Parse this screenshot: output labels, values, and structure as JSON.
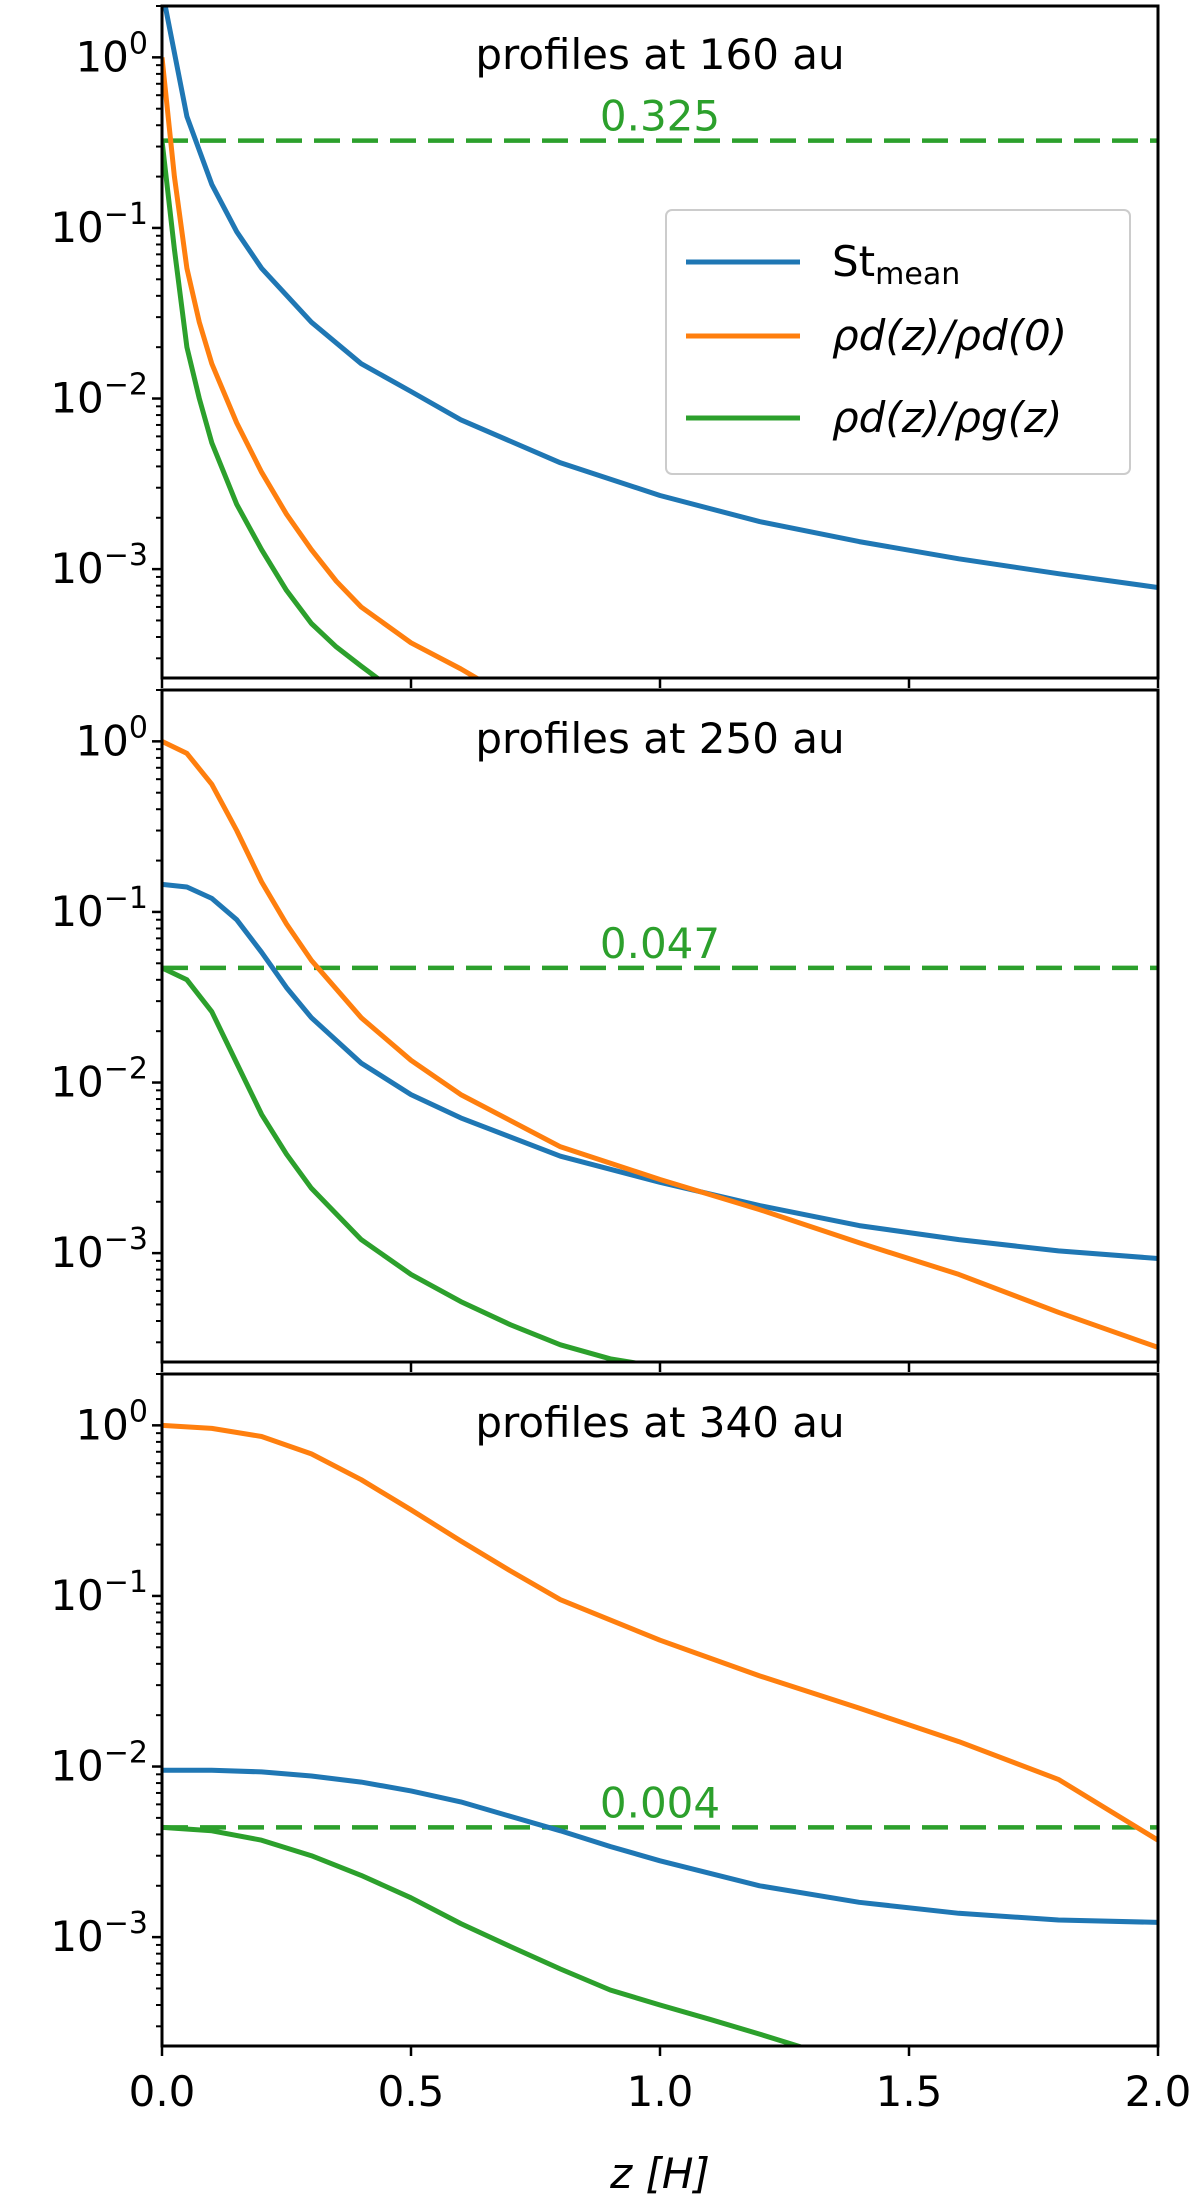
{
  "chart_data": [
    {
      "type": "line",
      "title": "profiles at 160 au",
      "annotation": "0.325",
      "threshold": 0.325,
      "xlim": [
        0,
        2
      ],
      "ylim": [
        0.00023,
        2.0
      ],
      "yscale": "log",
      "xticks": [
        "0.0",
        "0.5",
        "1.0",
        "1.5",
        "2.0"
      ],
      "legend": {
        "placement": "upper right",
        "entries": [
          {
            "series": "St_mean",
            "base": "St",
            "sub": "mean"
          },
          {
            "series": "rho_d_norm",
            "label": "ρd(z)/ρd(0)"
          },
          {
            "series": "rho_ratio",
            "label": "ρd(z)/ρg(z)"
          }
        ]
      },
      "series": [
        {
          "name": "St_mean",
          "color": "#1f77b4",
          "points": [
            [
              0.0,
              2.5
            ],
            [
              0.05,
              0.45
            ],
            [
              0.1,
              0.18
            ],
            [
              0.15,
              0.095
            ],
            [
              0.2,
              0.058
            ],
            [
              0.3,
              0.028
            ],
            [
              0.4,
              0.016
            ],
            [
              0.5,
              0.011
            ],
            [
              0.6,
              0.0075
            ],
            [
              0.8,
              0.0042
            ],
            [
              1.0,
              0.0027
            ],
            [
              1.2,
              0.0019
            ],
            [
              1.4,
              0.00145
            ],
            [
              1.6,
              0.00115
            ],
            [
              1.8,
              0.00094
            ],
            [
              2.0,
              0.00078
            ]
          ]
        },
        {
          "name": "rho_d_norm",
          "color": "#ff7f0e",
          "points": [
            [
              0.0,
              1.0
            ],
            [
              0.025,
              0.2
            ],
            [
              0.05,
              0.058
            ],
            [
              0.075,
              0.028
            ],
            [
              0.1,
              0.016
            ],
            [
              0.15,
              0.0072
            ],
            [
              0.2,
              0.0037
            ],
            [
              0.25,
              0.0021
            ],
            [
              0.3,
              0.0013
            ],
            [
              0.35,
              0.00085
            ],
            [
              0.4,
              0.0006
            ],
            [
              0.5,
              0.00037
            ],
            [
              0.6,
              0.00026
            ],
            [
              0.68,
              0.00019
            ]
          ]
        },
        {
          "name": "rho_ratio",
          "color": "#2ca02c",
          "points": [
            [
              0.0,
              0.325
            ],
            [
              0.025,
              0.075
            ],
            [
              0.05,
              0.02
            ],
            [
              0.075,
              0.01
            ],
            [
              0.1,
              0.0055
            ],
            [
              0.15,
              0.0024
            ],
            [
              0.2,
              0.0013
            ],
            [
              0.25,
              0.00075
            ],
            [
              0.3,
              0.00048
            ],
            [
              0.35,
              0.00035
            ],
            [
              0.4,
              0.00027
            ],
            [
              0.45,
              0.00021
            ]
          ]
        }
      ]
    },
    {
      "type": "line",
      "title": "profiles at 250 au",
      "annotation": "0.047",
      "threshold": 0.047,
      "xlim": [
        0,
        2
      ],
      "ylim": [
        0.00023,
        2.0
      ],
      "yscale": "log",
      "xticks": [
        "0.0",
        "0.5",
        "1.0",
        "1.5",
        "2.0"
      ],
      "series": [
        {
          "name": "St_mean",
          "color": "#1f77b4",
          "points": [
            [
              0.0,
              0.145
            ],
            [
              0.05,
              0.14
            ],
            [
              0.1,
              0.12
            ],
            [
              0.15,
              0.09
            ],
            [
              0.2,
              0.058
            ],
            [
              0.25,
              0.036
            ],
            [
              0.3,
              0.024
            ],
            [
              0.4,
              0.013
            ],
            [
              0.5,
              0.0085
            ],
            [
              0.6,
              0.0062
            ],
            [
              0.8,
              0.0037
            ],
            [
              1.0,
              0.0026
            ],
            [
              1.2,
              0.0019
            ],
            [
              1.4,
              0.00145
            ],
            [
              1.6,
              0.0012
            ],
            [
              1.8,
              0.00103
            ],
            [
              2.0,
              0.00093
            ]
          ]
        },
        {
          "name": "rho_d_norm",
          "color": "#ff7f0e",
          "points": [
            [
              0.0,
              1.0
            ],
            [
              0.05,
              0.85
            ],
            [
              0.1,
              0.56
            ],
            [
              0.15,
              0.3
            ],
            [
              0.2,
              0.15
            ],
            [
              0.25,
              0.085
            ],
            [
              0.3,
              0.052
            ],
            [
              0.4,
              0.024
            ],
            [
              0.5,
              0.0135
            ],
            [
              0.6,
              0.0085
            ],
            [
              0.8,
              0.0042
            ],
            [
              1.0,
              0.0027
            ],
            [
              1.2,
              0.0018
            ],
            [
              1.4,
              0.00115
            ],
            [
              1.6,
              0.00075
            ],
            [
              1.8,
              0.00045
            ],
            [
              2.0,
              0.00028
            ]
          ]
        },
        {
          "name": "rho_ratio",
          "color": "#2ca02c",
          "points": [
            [
              0.0,
              0.047
            ],
            [
              0.05,
              0.04
            ],
            [
              0.1,
              0.026
            ],
            [
              0.15,
              0.013
            ],
            [
              0.2,
              0.0065
            ],
            [
              0.25,
              0.0038
            ],
            [
              0.3,
              0.0024
            ],
            [
              0.4,
              0.0012
            ],
            [
              0.5,
              0.00075
            ],
            [
              0.6,
              0.00052
            ],
            [
              0.7,
              0.00038
            ],
            [
              0.8,
              0.00029
            ],
            [
              0.9,
              0.00024
            ],
            [
              1.02,
              0.00021
            ]
          ]
        }
      ]
    },
    {
      "type": "line",
      "title": "profiles at 340 au",
      "annotation": "0.004",
      "threshold": 0.0044,
      "xlim": [
        0,
        2
      ],
      "ylim": [
        0.00023,
        2.0
      ],
      "yscale": "log",
      "xticks": [
        "0.0",
        "0.5",
        "1.0",
        "1.5",
        "2.0"
      ],
      "xlabel": "z [H]",
      "series": [
        {
          "name": "St_mean",
          "color": "#1f77b4",
          "points": [
            [
              0.0,
              0.0095
            ],
            [
              0.1,
              0.0095
            ],
            [
              0.2,
              0.0093
            ],
            [
              0.3,
              0.0088
            ],
            [
              0.4,
              0.0081
            ],
            [
              0.5,
              0.0072
            ],
            [
              0.6,
              0.0062
            ],
            [
              0.7,
              0.0051
            ],
            [
              0.8,
              0.0042
            ],
            [
              0.9,
              0.0034
            ],
            [
              1.0,
              0.0028
            ],
            [
              1.2,
              0.002
            ],
            [
              1.4,
              0.0016
            ],
            [
              1.6,
              0.00138
            ],
            [
              1.8,
              0.00126
            ],
            [
              2.0,
              0.00122
            ]
          ]
        },
        {
          "name": "rho_d_norm",
          "color": "#ff7f0e",
          "points": [
            [
              0.0,
              1.0
            ],
            [
              0.1,
              0.96
            ],
            [
              0.2,
              0.86
            ],
            [
              0.3,
              0.68
            ],
            [
              0.4,
              0.48
            ],
            [
              0.5,
              0.32
            ],
            [
              0.6,
              0.21
            ],
            [
              0.7,
              0.14
            ],
            [
              0.8,
              0.095
            ],
            [
              1.0,
              0.055
            ],
            [
              1.2,
              0.034
            ],
            [
              1.4,
              0.022
            ],
            [
              1.6,
              0.014
            ],
            [
              1.8,
              0.0084
            ],
            [
              2.0,
              0.0037
            ]
          ]
        },
        {
          "name": "rho_ratio",
          "color": "#2ca02c",
          "points": [
            [
              0.0,
              0.0044
            ],
            [
              0.1,
              0.0042
            ],
            [
              0.2,
              0.0037
            ],
            [
              0.3,
              0.003
            ],
            [
              0.4,
              0.0023
            ],
            [
              0.5,
              0.0017
            ],
            [
              0.6,
              0.0012
            ],
            [
              0.7,
              0.00088
            ],
            [
              0.8,
              0.00065
            ],
            [
              0.9,
              0.00049
            ],
            [
              1.0,
              0.0004
            ],
            [
              1.1,
              0.00033
            ],
            [
              1.2,
              0.00027
            ],
            [
              1.32,
              0.00021
            ]
          ]
        }
      ]
    }
  ]
}
